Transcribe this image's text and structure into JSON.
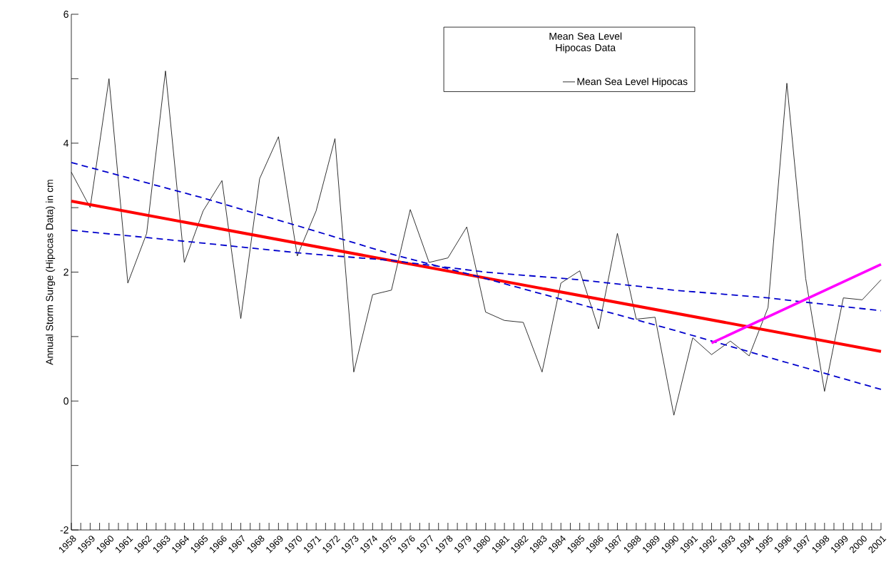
{
  "chart_data": {
    "type": "line",
    "ylabel": "Annual Storm Surge (Hipocas Data) in cm",
    "legend_title": "Mean Sea Level Hipocas Data",
    "legend": "top right",
    "grid": false,
    "marker": "none",
    "xlim": [
      1958,
      2001
    ],
    "ylim": [
      -2,
      6
    ],
    "xticks": [
      1958,
      {
        "value": 1958.5,
        "label": null
      },
      1959,
      {
        "value": 1959.5,
        "label": null
      },
      1960,
      {
        "value": 1960.5,
        "label": null
      },
      1961,
      {
        "value": 1961.5,
        "label": null
      },
      1962,
      {
        "value": 1962.5,
        "label": null
      },
      1963,
      {
        "value": 1963.5,
        "label": null
      },
      1964,
      {
        "value": 1964.5,
        "label": null
      },
      1965,
      {
        "value": 1965.5,
        "label": null
      },
      1966,
      {
        "value": 1966.5,
        "label": null
      },
      1967,
      {
        "value": 1967.5,
        "label": null
      },
      1968,
      {
        "value": 1968.5,
        "label": null
      },
      1969,
      {
        "value": 1969.5,
        "label": null
      },
      1970,
      {
        "value": 1970.5,
        "label": null
      },
      1971,
      {
        "value": 1971.5,
        "label": null
      },
      1972,
      {
        "value": 1972.5,
        "label": null
      },
      1973,
      {
        "value": 1973.5,
        "label": null
      },
      1974,
      {
        "value": 1974.5,
        "label": null
      },
      1975,
      {
        "value": 1975.5,
        "label": null
      },
      1976,
      {
        "value": 1976.5,
        "label": null
      },
      1977,
      {
        "value": 1977.5,
        "label": null
      },
      1978,
      {
        "value": 1978.5,
        "label": null
      },
      1979,
      {
        "value": 1979.5,
        "label": null
      },
      1980,
      {
        "value": 1980.5,
        "label": null
      },
      1981,
      {
        "value": 1981.5,
        "label": null
      },
      1982,
      {
        "value": 1982.5,
        "label": null
      },
      1983,
      {
        "value": 1983.5,
        "label": null
      },
      1984,
      {
        "value": 1984.5,
        "label": null
      },
      1985,
      {
        "value": 1985.5,
        "label": null
      },
      1986,
      {
        "value": 1986.5,
        "label": null
      },
      1987,
      {
        "value": 1987.5,
        "label": null
      },
      1988,
      {
        "value": 1988.5,
        "label": null
      },
      1989,
      {
        "value": 1989.5,
        "label": null
      },
      1990,
      {
        "value": 1990.5,
        "label": null
      },
      1991,
      {
        "value": 1991.5,
        "label": null
      },
      1992,
      {
        "value": 1992.5,
        "label": null
      },
      1993,
      {
        "value": 1993.5,
        "label": null
      },
      1994,
      {
        "value": 1994.5,
        "label": null
      },
      1995,
      {
        "value": 1995.5,
        "label": null
      },
      1996,
      {
        "value": 1996.5,
        "label": null
      },
      1997,
      {
        "value": 1997.5,
        "label": null
      },
      1998,
      {
        "value": 1998.5,
        "label": null
      },
      1999,
      {
        "value": 1999.5,
        "label": null
      },
      2000,
      {
        "value": 2000.5,
        "label": null
      },
      2001
    ],
    "yticks": [
      -2,
      {
        "value": -1,
        "label": null
      },
      0,
      {
        "value": 1,
        "label": null
      },
      2,
      {
        "value": 3,
        "label": null
      },
      4,
      {
        "value": 5,
        "label": null
      },
      6
    ],
    "series": [
      {
        "name": "Mean Sea Level Hipocas",
        "color": "#000000",
        "line_style": "solid",
        "x": [
          1958,
          1959,
          1960,
          1961,
          1962,
          1963,
          1964,
          1965,
          1966,
          1967,
          1968,
          1969,
          1970,
          1971,
          1972,
          1973,
          1974,
          1975,
          1976,
          1977,
          1978,
          1979,
          1980,
          1981,
          1982,
          1983,
          1984,
          1985,
          1986,
          1987,
          1988,
          1989,
          1990,
          1991,
          1992,
          1993,
          1994,
          1995,
          1996,
          1997,
          1998,
          1999,
          2000,
          2001
        ],
        "values": [
          3.55,
          3.0,
          5.0,
          1.83,
          2.6,
          5.12,
          2.15,
          2.95,
          3.42,
          1.28,
          3.45,
          4.1,
          2.25,
          2.95,
          4.07,
          0.45,
          1.65,
          1.72,
          2.97,
          2.15,
          2.22,
          2.7,
          1.38,
          1.25,
          1.22,
          0.45,
          1.83,
          2.02,
          1.12,
          2.6,
          1.27,
          1.3,
          -0.22,
          0.98,
          0.72,
          0.93,
          0.7,
          1.45,
          4.93,
          1.9,
          0.15,
          1.6,
          1.57,
          1.88
        ]
      },
      {
        "color": "#ff0000",
        "line_style": "solid",
        "x": [
          1958,
          2001
        ],
        "values": [
          3.1,
          0.77
        ]
      },
      {
        "color": "#0000cc",
        "line_style": "dashed",
        "x": [
          1958,
          1965,
          1970,
          1975,
          1980,
          1985,
          1990,
          1995,
          2001
        ],
        "values": [
          3.7,
          3.15,
          2.72,
          2.28,
          1.9,
          1.5,
          1.1,
          0.68,
          0.18
        ]
      },
      {
        "color": "#0000cc",
        "line_style": "dashed",
        "x": [
          1958,
          1965,
          1970,
          1975,
          1980,
          1985,
          1990,
          1995,
          2001
        ],
        "values": [
          2.65,
          2.45,
          2.3,
          2.18,
          2.0,
          1.88,
          1.72,
          1.6,
          1.4
        ]
      },
      {
        "color": "#ff00ff",
        "line_style": "solid",
        "x": [
          1992,
          2001
        ],
        "values": [
          0.9,
          2.12
        ]
      }
    ]
  }
}
